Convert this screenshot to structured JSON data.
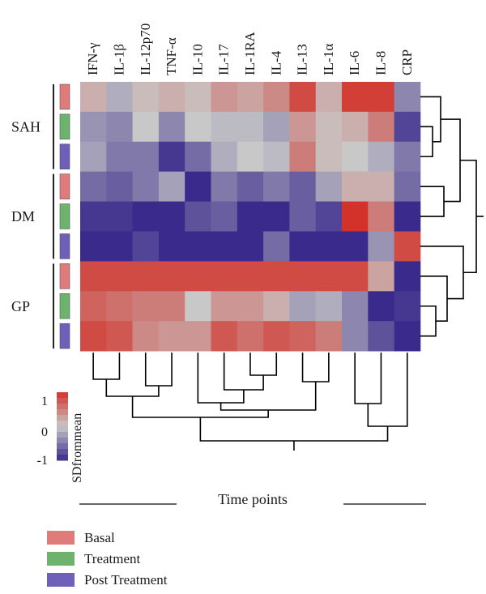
{
  "chart_data": {
    "type": "heatmap",
    "columns": [
      "IFN-γ",
      "IL-1β",
      "IL-12p70",
      "TNF-α",
      "IL-10",
      "IL-17",
      "IL-1RA",
      "IL-4",
      "IL-13",
      "IL-1α",
      "IL-6",
      "IL-8",
      "CRP"
    ],
    "groups": [
      {
        "label": "SAH",
        "rows": [
          "Basal",
          "Treatment",
          "Post Treatment"
        ]
      },
      {
        "label": "DM",
        "rows": [
          "Basal",
          "Treatment",
          "Post Treatment"
        ]
      },
      {
        "label": "GP",
        "rows": [
          "Basal",
          "Treatment",
          "Post Treatment"
        ]
      }
    ],
    "values": [
      [
        0.2,
        -0.2,
        0.1,
        0.2,
        0.1,
        0.4,
        0.3,
        0.5,
        1.0,
        0.2,
        1.1,
        1.1,
        -0.5
      ],
      [
        -0.4,
        -0.5,
        0.0,
        -0.5,
        0.0,
        -0.1,
        -0.1,
        -0.3,
        0.4,
        0.1,
        0.2,
        0.6,
        -1.0
      ],
      [
        -0.3,
        -0.6,
        -0.6,
        -1.1,
        -0.7,
        -0.2,
        0.0,
        -0.1,
        0.6,
        0.1,
        0.0,
        -0.2,
        -0.6
      ],
      [
        -0.7,
        -0.8,
        -0.6,
        -0.3,
        -1.2,
        -0.6,
        -0.8,
        -0.6,
        -0.8,
        -0.3,
        0.2,
        0.2,
        -0.7
      ],
      [
        -1.1,
        -1.1,
        -1.3,
        -1.2,
        -0.9,
        -0.8,
        -1.3,
        -1.3,
        -0.8,
        -1.0,
        1.2,
        0.6,
        -1.2
      ],
      [
        -1.2,
        -1.2,
        -1.0,
        -1.2,
        -1.2,
        -1.2,
        -1.2,
        -0.7,
        -1.2,
        -1.2,
        -1.2,
        -0.4,
        1.0
      ],
      [
        1.0,
        1.0,
        1.0,
        1.0,
        1.0,
        1.0,
        1.0,
        1.0,
        1.0,
        1.0,
        1.0,
        0.3,
        -1.2
      ],
      [
        0.8,
        0.7,
        0.6,
        0.6,
        0.0,
        0.4,
        0.4,
        0.2,
        -0.3,
        -0.2,
        -0.5,
        -1.3,
        -1.1
      ],
      [
        1.0,
        0.9,
        0.5,
        0.4,
        0.4,
        0.9,
        0.7,
        0.9,
        0.8,
        0.6,
        -0.5,
        -0.9,
        -1.2
      ]
    ],
    "color_scale": {
      "label": "SDfrommean",
      "ticks": [
        "1",
        "0",
        "-1"
      ],
      "min": -1.2,
      "max": 1.2,
      "low_color": "#3a2a8c",
      "mid_color": "#c8c8c8",
      "high_color": "#d2322a"
    },
    "legend": [
      {
        "label": "Basal",
        "color": "#e07b7b"
      },
      {
        "label": "Treatment",
        "color": "#6db36d"
      },
      {
        "label": "Post Treatment",
        "color": "#6e60b8"
      }
    ],
    "xlabel": "Time points"
  }
}
